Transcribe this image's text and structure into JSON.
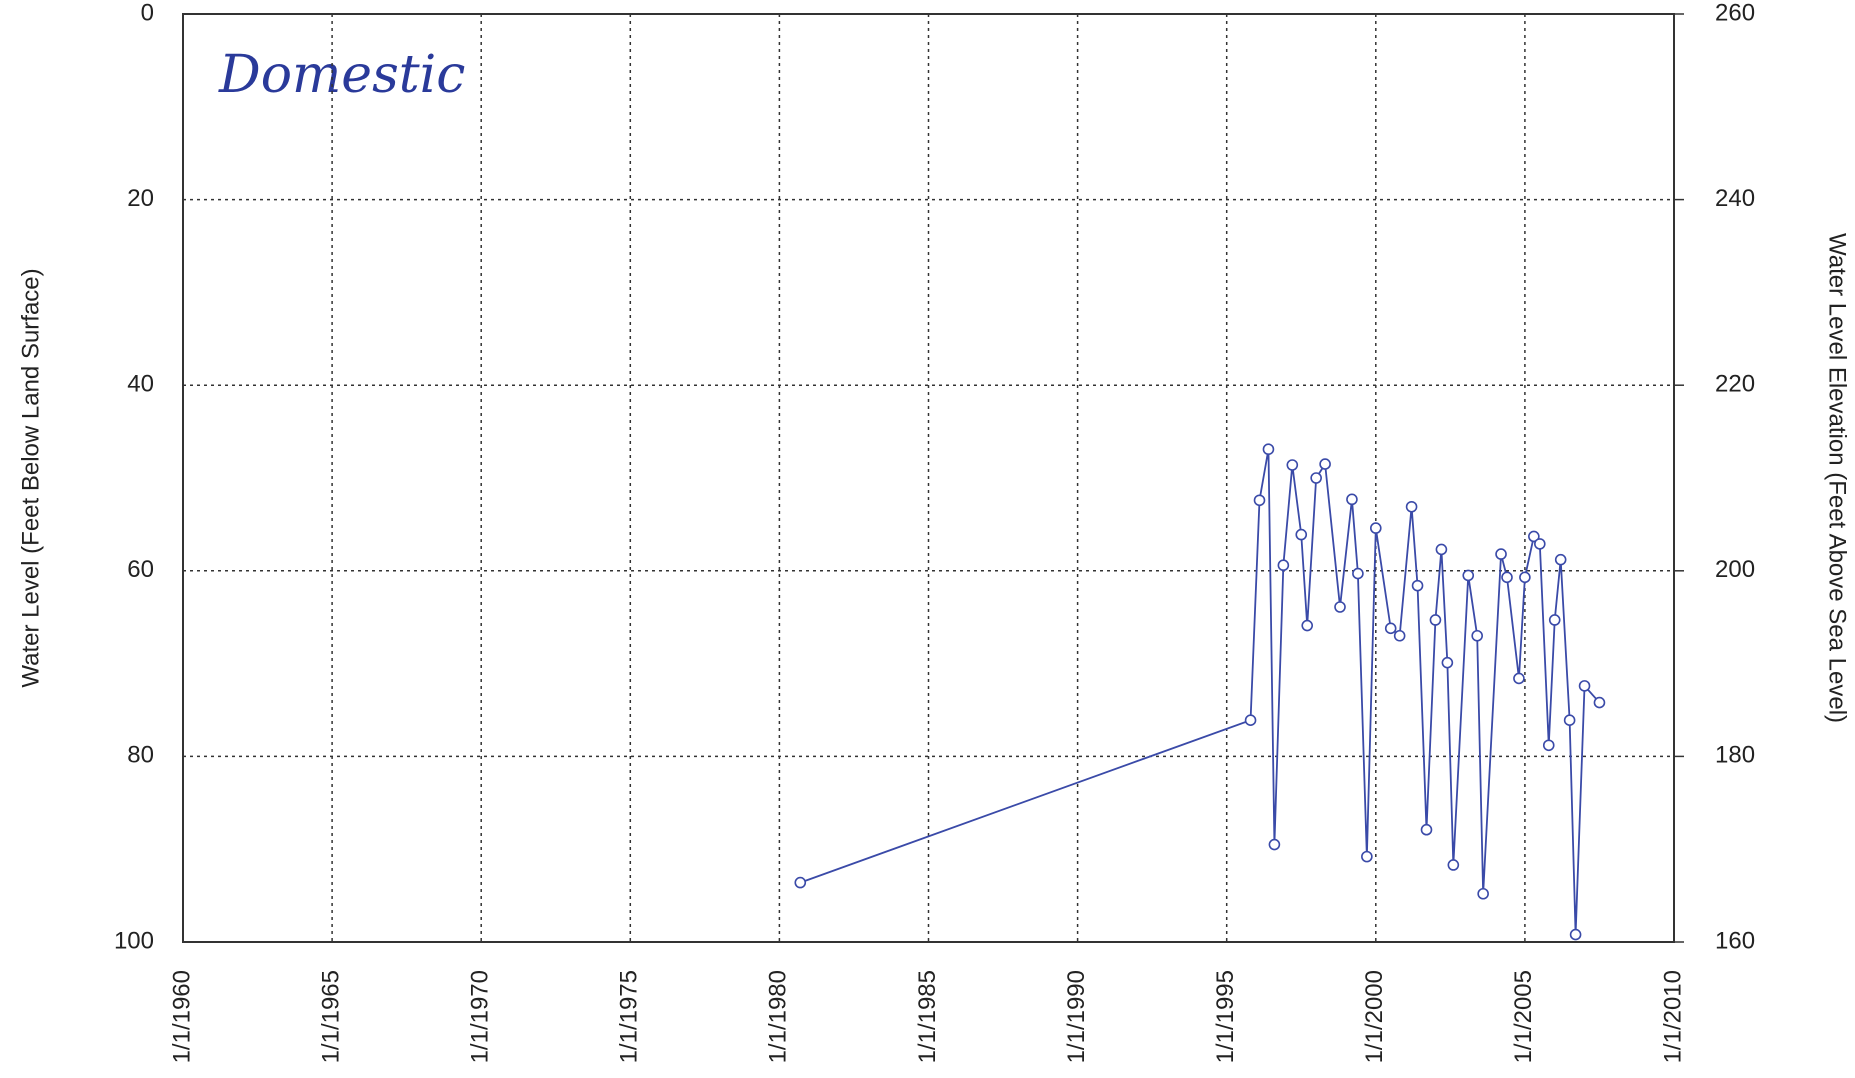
{
  "chart_data": {
    "type": "line",
    "annotation": "Domestic",
    "ylabel": "Water Level  (Feet Below Land Surface)",
    "y2label": "Water Level Elevation  (Feet Above Sea Level)",
    "color": "#3a4aa8",
    "grid": true,
    "x": [
      1980.7,
      1995.8,
      1996.1,
      1996.4,
      1996.6,
      1996.9,
      1997.2,
      1997.5,
      1997.7,
      1998.0,
      1998.3,
      1998.8,
      1999.2,
      1999.4,
      1999.7,
      2000.0,
      2000.5,
      2000.8,
      2001.2,
      2001.4,
      2001.7,
      2002.0,
      2002.2,
      2002.4,
      2002.6,
      2003.1,
      2003.4,
      2003.6,
      2004.2,
      2004.4,
      2004.8,
      2005.0,
      2005.3,
      2005.5,
      2005.8,
      2006.0,
      2006.2,
      2006.5,
      2006.7,
      2007.0,
      2007.5
    ],
    "values": [
      93.6,
      76.1,
      52.4,
      46.9,
      89.5,
      59.4,
      48.6,
      56.1,
      65.9,
      50.0,
      48.5,
      63.9,
      52.3,
      60.3,
      90.8,
      55.4,
      66.2,
      67.0,
      53.1,
      61.6,
      87.9,
      65.3,
      57.7,
      69.9,
      91.7,
      60.5,
      67.0,
      94.8,
      58.2,
      60.7,
      71.6,
      60.7,
      56.3,
      57.1,
      78.8,
      65.3,
      58.8,
      76.1,
      99.2,
      72.4,
      74.2
    ],
    "xlim": [
      1960,
      2010
    ],
    "xticks": [
      {
        "value": 1960,
        "label": "1/1/1960"
      },
      {
        "value": 1965,
        "label": "1/1/1965"
      },
      {
        "value": 1970,
        "label": "1/1/1970"
      },
      {
        "value": 1975,
        "label": "1/1/1975"
      },
      {
        "value": 1980,
        "label": "1/1/1980"
      },
      {
        "value": 1985,
        "label": "1/1/1985"
      },
      {
        "value": 1990,
        "label": "1/1/1990"
      },
      {
        "value": 1995,
        "label": "1/1/1995"
      },
      {
        "value": 2000,
        "label": "1/1/2000"
      },
      {
        "value": 2005,
        "label": "1/1/2005"
      },
      {
        "value": 2010,
        "label": "1/1/2010"
      }
    ],
    "ylim": [
      100,
      0
    ],
    "yticks": [
      0,
      20,
      40,
      60,
      80,
      100
    ],
    "y2lim": [
      160,
      260
    ],
    "y2ticks": [
      160,
      180,
      200,
      220,
      240,
      260
    ]
  }
}
